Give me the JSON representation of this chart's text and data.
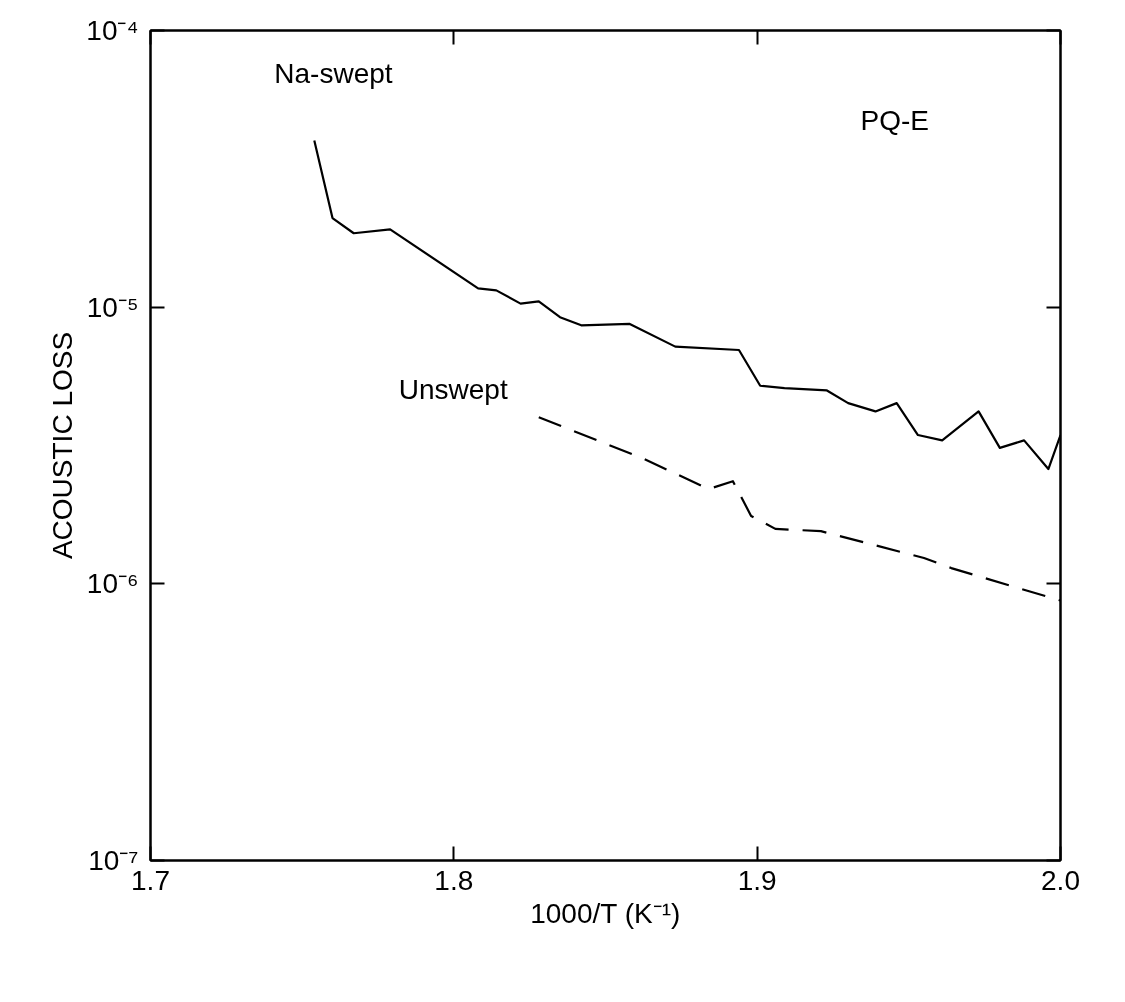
{
  "chart_data": {
    "type": "line",
    "xlabel": "1000/T (K⁻¹)",
    "ylabel": "ACOUSTIC LOSS",
    "annotations": [
      "PQ-E"
    ],
    "log": "y",
    "grid": false,
    "marker": "none",
    "xlim": [
      1.7,
      2.0
    ],
    "ylim": [
      1e-07,
      0.0001
    ],
    "xticks": [
      {
        "value": 1.7,
        "label": "1.7"
      },
      {
        "value": 1.8,
        "label": "1.8"
      },
      {
        "value": 1.9,
        "label": "1.9"
      },
      {
        "value": 2.0,
        "label": "2.0"
      }
    ],
    "yticks": [
      {
        "value": 1e-07,
        "label": "10⁻⁷"
      },
      {
        "value": 1e-06,
        "label": "10⁻⁶"
      },
      {
        "value": 1e-05,
        "label": "10⁻⁵"
      },
      {
        "value": 0.0001,
        "label": "10⁻⁴"
      }
    ],
    "series": [
      {
        "name": "Na-swept",
        "color": "#000000",
        "line_style": "solid",
        "x": [
          1.754,
          1.76,
          1.767,
          1.779,
          1.808,
          1.814,
          1.822,
          1.828,
          1.835,
          1.842,
          1.858,
          1.873,
          1.894,
          1.901,
          1.909,
          1.923,
          1.93,
          1.939,
          1.946,
          1.953,
          1.961,
          1.973,
          1.98,
          1.988,
          1.996,
          2.0
        ],
        "values": [
          4e-05,
          2.1e-05,
          1.85e-05,
          1.91e-05,
          1.17e-05,
          1.15e-05,
          1.03e-05,
          1.05e-05,
          9.2e-06,
          8.6e-06,
          8.7e-06,
          7.2e-06,
          7e-06,
          5.2e-06,
          5.1e-06,
          5e-06,
          4.5e-06,
          4.2e-06,
          4.5e-06,
          3.45e-06,
          3.3e-06,
          4.2e-06,
          3.1e-06,
          3.3e-06,
          2.6e-06,
          3.45e-06
        ]
      },
      {
        "name": "Unswept",
        "color": "#000000",
        "line_style": "dashed",
        "x": [
          1.828,
          1.862,
          1.884,
          1.892,
          1.898,
          1.906,
          1.921,
          1.955,
          1.964,
          2.0
        ],
        "values": [
          4e-06,
          2.85e-06,
          2.2e-06,
          2.35e-06,
          1.76e-06,
          1.58e-06,
          1.55e-06,
          1.24e-06,
          1.14e-06,
          8.7e-07
        ]
      }
    ]
  }
}
